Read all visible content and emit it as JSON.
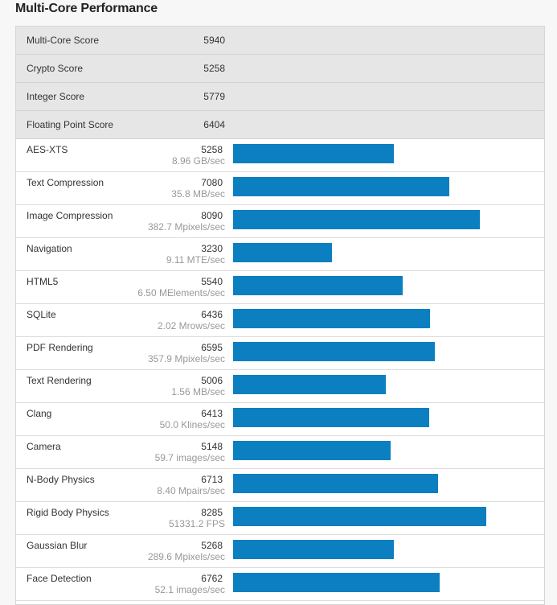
{
  "title": "Multi-Core Performance",
  "accent_color": "#0b7fc0",
  "bar_scale_max": 10000,
  "summary": [
    {
      "label": "Multi-Core Score",
      "value": "5940"
    },
    {
      "label": "Crypto Score",
      "value": "5258"
    },
    {
      "label": "Integer Score",
      "value": "5779"
    },
    {
      "label": "Floating Point Score",
      "value": "6404"
    }
  ],
  "benchmarks": [
    {
      "name": "AES-XTS",
      "score": 5258,
      "rate": "8.96 GB/sec"
    },
    {
      "name": "Text Compression",
      "score": 7080,
      "rate": "35.8 MB/sec"
    },
    {
      "name": "Image Compression",
      "score": 8090,
      "rate": "382.7 Mpixels/sec"
    },
    {
      "name": "Navigation",
      "score": 3230,
      "rate": "9.11 MTE/sec"
    },
    {
      "name": "HTML5",
      "score": 5540,
      "rate": "6.50 MElements/sec"
    },
    {
      "name": "SQLite",
      "score": 6436,
      "rate": "2.02 Mrows/sec"
    },
    {
      "name": "PDF Rendering",
      "score": 6595,
      "rate": "357.9 Mpixels/sec"
    },
    {
      "name": "Text Rendering",
      "score": 5006,
      "rate": "1.56 MB/sec"
    },
    {
      "name": "Clang",
      "score": 6413,
      "rate": "50.0 Klines/sec"
    },
    {
      "name": "Camera",
      "score": 5148,
      "rate": "59.7 images/sec"
    },
    {
      "name": "N-Body Physics",
      "score": 6713,
      "rate": "8.40 Mpairs/sec"
    },
    {
      "name": "Rigid Body Physics",
      "score": 8285,
      "rate": "51331.2 FPS"
    },
    {
      "name": "Gaussian Blur",
      "score": 5268,
      "rate": "289.6 Mpixels/sec"
    },
    {
      "name": "Face Detection",
      "score": 6762,
      "rate": "52.1 images/sec"
    }
  ]
}
